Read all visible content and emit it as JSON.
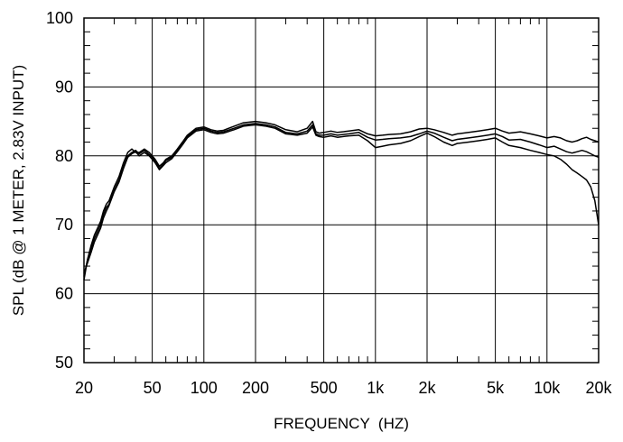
{
  "chart_data": {
    "type": "line",
    "title": "",
    "xlabel": "FREQUENCY  (HZ)",
    "ylabel": "SPL (dB @ 1 METER, 2.83V INPUT)",
    "x_scale": "log",
    "xlim": [
      20,
      20000
    ],
    "ylim": [
      50,
      100
    ],
    "grid": true,
    "x_ticks": [
      {
        "value": 20,
        "label": "20"
      },
      {
        "value": 50,
        "label": "50"
      },
      {
        "value": 100,
        "label": "100"
      },
      {
        "value": 200,
        "label": "200"
      },
      {
        "value": 500,
        "label": "500"
      },
      {
        "value": 1000,
        "label": "1k"
      },
      {
        "value": 2000,
        "label": "2k"
      },
      {
        "value": 5000,
        "label": "5k"
      },
      {
        "value": 10000,
        "label": "10k"
      },
      {
        "value": 20000,
        "label": "20k"
      }
    ],
    "y_ticks": [
      {
        "value": 50,
        "label": "50"
      },
      {
        "value": 60,
        "label": "60"
      },
      {
        "value": 70,
        "label": "70"
      },
      {
        "value": 80,
        "label": "80"
      },
      {
        "value": 90,
        "label": "90"
      },
      {
        "value": 100,
        "label": "100"
      }
    ],
    "series": [
      {
        "x": [
          20,
          21,
          22,
          23,
          24,
          25,
          26,
          27,
          28,
          30,
          32,
          34,
          36,
          38,
          40,
          42,
          45,
          48,
          50,
          52,
          55,
          58,
          60,
          65,
          70,
          75,
          80,
          90,
          100,
          110,
          120,
          130,
          150,
          170,
          200,
          230,
          260,
          300,
          350,
          400,
          430,
          450,
          470,
          500,
          550,
          600,
          700,
          800,
          900,
          1000,
          1100,
          1200,
          1400,
          1600,
          1800,
          2000,
          2200,
          2500,
          2800,
          3000,
          3500,
          4000,
          4500,
          5000,
          5500,
          6000,
          7000,
          8000,
          9000,
          10000,
          11000,
          12000,
          13000,
          14000,
          15000,
          16000,
          17000,
          18000,
          19000,
          20000
        ],
        "y": [
          62,
          65,
          67,
          68.5,
          69.5,
          70.5,
          72,
          73,
          73.5,
          75.5,
          77,
          79,
          80.5,
          81,
          80.5,
          80.5,
          81,
          80.5,
          80,
          79.5,
          78.5,
          79,
          79.5,
          80,
          81,
          82,
          83,
          84,
          84.2,
          83.8,
          83.6,
          83.7,
          84.3,
          84.8,
          85,
          84.8,
          84.5,
          83.8,
          83.5,
          84,
          85,
          83.5,
          83.3,
          83.4,
          83.6,
          83.4,
          83.6,
          83.8,
          83.2,
          82.9,
          83,
          83.1,
          83.2,
          83.5,
          83.9,
          84,
          83.8,
          83.4,
          83,
          83.2,
          83.4,
          83.6,
          83.8,
          84,
          83.6,
          83.3,
          83.5,
          83.2,
          82.9,
          82.6,
          82.8,
          82.6,
          82.2,
          82,
          82.2,
          82.5,
          82.7,
          82.4,
          82.2,
          82
        ]
      },
      {
        "x": [
          20,
          21,
          22,
          23,
          24,
          25,
          26,
          27,
          28,
          30,
          32,
          34,
          36,
          38,
          40,
          42,
          45,
          48,
          50,
          52,
          55,
          58,
          60,
          65,
          70,
          75,
          80,
          90,
          100,
          110,
          120,
          130,
          150,
          170,
          200,
          230,
          260,
          300,
          350,
          400,
          430,
          450,
          470,
          500,
          550,
          600,
          700,
          800,
          900,
          1000,
          1100,
          1200,
          1400,
          1600,
          1800,
          2000,
          2200,
          2500,
          2800,
          3000,
          3500,
          4000,
          4500,
          5000,
          5500,
          6000,
          7000,
          8000,
          9000,
          10000,
          11000,
          12000,
          13000,
          14000,
          15000,
          16000,
          17000,
          18000,
          19000,
          20000
        ],
        "y": [
          62.5,
          65,
          66.5,
          68,
          69,
          70,
          71.5,
          72.5,
          73,
          75,
          76.5,
          78.5,
          80,
          80.5,
          80.8,
          80.3,
          80.8,
          80.2,
          79.8,
          79.2,
          78.2,
          78.8,
          79.3,
          79.8,
          80.8,
          81.8,
          82.8,
          83.8,
          84,
          83.6,
          83.4,
          83.5,
          84,
          84.5,
          84.7,
          84.5,
          84.2,
          83.4,
          83.2,
          83.6,
          84.5,
          83.2,
          83,
          83,
          83.2,
          83,
          83.2,
          83.4,
          82.7,
          82.3,
          82.4,
          82.5,
          82.6,
          82.8,
          83.2,
          83.6,
          83.3,
          82.7,
          82.2,
          82.4,
          82.6,
          82.8,
          83,
          83.2,
          82.8,
          82.3,
          82.4,
          82,
          81.6,
          81.2,
          81.4,
          81,
          80.6,
          80.4,
          80.6,
          80.8,
          80.6,
          80.3,
          80,
          79.8
        ]
      },
      {
        "x": [
          20,
          21,
          22,
          23,
          24,
          25,
          26,
          27,
          28,
          30,
          32,
          34,
          36,
          38,
          40,
          42,
          45,
          48,
          50,
          52,
          55,
          58,
          60,
          65,
          70,
          75,
          80,
          90,
          100,
          110,
          120,
          130,
          150,
          170,
          200,
          230,
          260,
          300,
          350,
          400,
          430,
          450,
          470,
          500,
          550,
          600,
          700,
          800,
          900,
          1000,
          1100,
          1200,
          1400,
          1600,
          1800,
          2000,
          2200,
          2500,
          2800,
          3000,
          3500,
          4000,
          4500,
          5000,
          5500,
          6000,
          7000,
          8000,
          9000,
          10000,
          11000,
          12000,
          13000,
          14000,
          15000,
          16000,
          17000,
          18000,
          19000,
          20000
        ],
        "y": [
          63,
          64.5,
          66,
          67.5,
          68.5,
          69.5,
          71,
          72,
          72.8,
          74.8,
          76.2,
          78.2,
          79.8,
          80.3,
          80.6,
          80,
          80.5,
          80,
          79.5,
          79,
          78,
          78.6,
          79,
          79.6,
          80.6,
          81.6,
          82.6,
          83.6,
          83.8,
          83.4,
          83.2,
          83.3,
          83.8,
          84.3,
          84.5,
          84.3,
          84,
          83.2,
          83,
          83.3,
          84.2,
          83,
          82.8,
          82.7,
          82.9,
          82.7,
          82.9,
          83,
          82.2,
          81.2,
          81.4,
          81.6,
          81.8,
          82.2,
          82.8,
          83.3,
          82.8,
          82,
          81.5,
          81.8,
          82,
          82.2,
          82.4,
          82.6,
          82,
          81.5,
          81.2,
          80.8,
          80.5,
          80.2,
          80,
          79.5,
          78.8,
          78,
          77.5,
          77,
          76.5,
          75.5,
          73.5,
          70
        ]
      }
    ]
  }
}
